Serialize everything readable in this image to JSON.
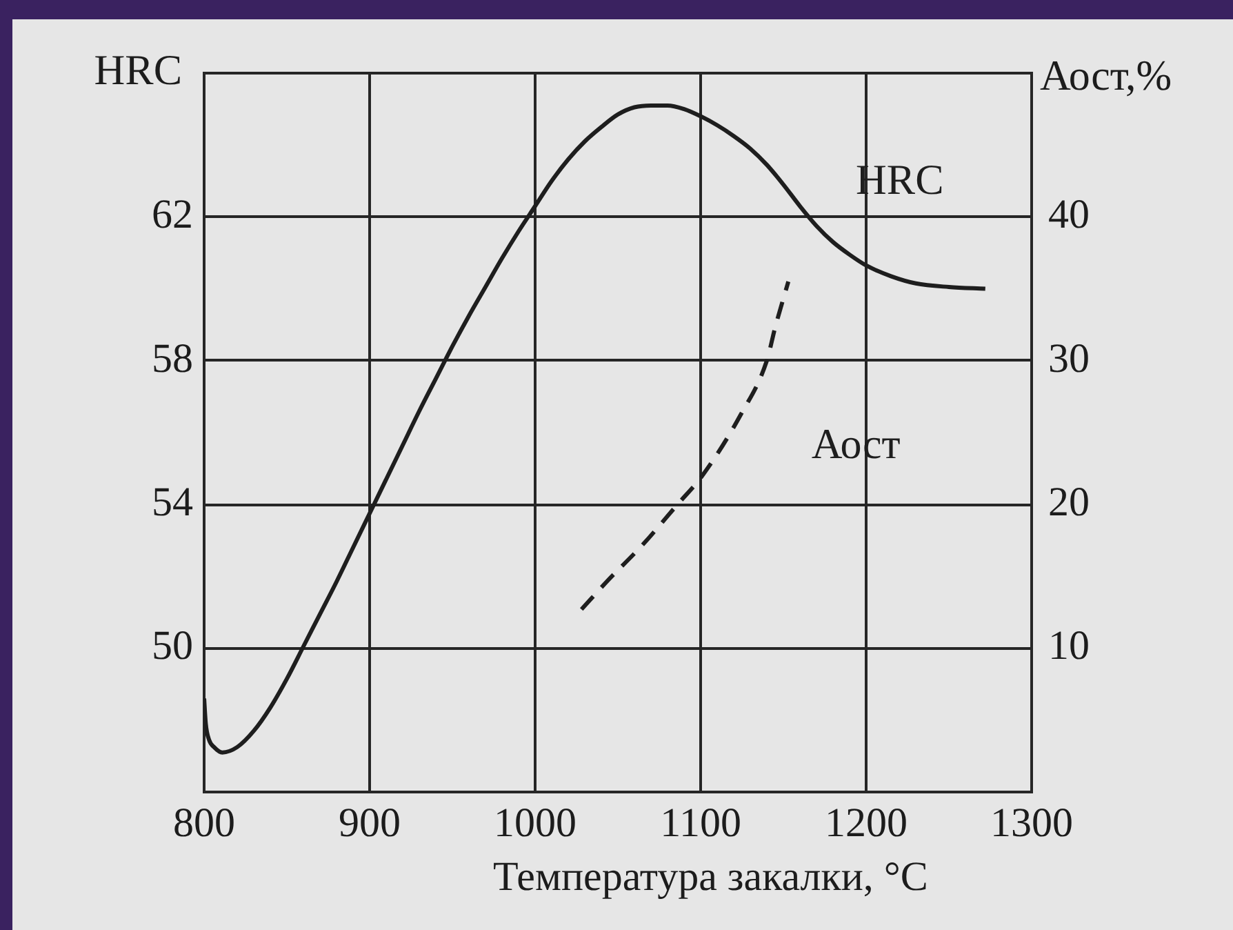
{
  "chart_data": {
    "type": "line",
    "xlabel": "Температура закалки, °C",
    "ylabel": "HRC",
    "y2label": "Аост,%",
    "series": [
      {
        "name": "HRC",
        "color": "#1e1e1e",
        "line_style": "solid",
        "x": [
          800,
          801,
          803,
          806,
          811,
          820,
          830,
          840,
          850,
          860,
          870,
          880,
          890,
          900,
          910,
          920,
          930,
          940,
          950,
          960,
          970,
          980,
          990,
          1000,
          1010,
          1020,
          1030,
          1040,
          1050,
          1060,
          1070,
          1080,
          1090,
          1100,
          1110,
          1120,
          1130,
          1140,
          1150,
          1160,
          1170,
          1180,
          1190,
          1200,
          1215,
          1230,
          1250,
          1272
        ],
        "values": [
          48.6,
          47.9,
          47.45,
          47.25,
          47.1,
          47.25,
          47.7,
          48.35,
          49.15,
          50.05,
          50.95,
          51.85,
          52.8,
          53.75,
          54.7,
          55.65,
          56.6,
          57.5,
          58.4,
          59.25,
          60.05,
          60.85,
          61.6,
          62.3,
          63.0,
          63.6,
          64.1,
          64.5,
          64.85,
          65.05,
          65.1,
          65.1,
          65.0,
          64.8,
          64.55,
          64.25,
          63.9,
          63.45,
          62.9,
          62.3,
          61.75,
          61.3,
          60.95,
          60.65,
          60.35,
          60.15,
          60.05,
          60.0
        ]
      },
      {
        "name": "Аост",
        "color": "#1e1e1e",
        "line_style": "dashed",
        "axis": "y2",
        "x": [
          1028,
          1043,
          1065,
          1086,
          1101,
          1124,
          1140,
          1145,
          1153
        ],
        "values": [
          12.7,
          14.6,
          17.2,
          20.0,
          22.0,
          26.2,
          30.0,
          32.3,
          35.5
        ]
      }
    ],
    "xlim": [
      800,
      1300
    ],
    "xticks": [
      800,
      900,
      1000,
      1100,
      1200,
      1300
    ],
    "ylim": [
      46,
      66
    ],
    "yticks": [
      50,
      54,
      58,
      62
    ],
    "y2lim": [
      0,
      50
    ],
    "y2ticks": [
      10,
      20,
      30,
      40
    ],
    "grid": true,
    "marker": "none"
  }
}
